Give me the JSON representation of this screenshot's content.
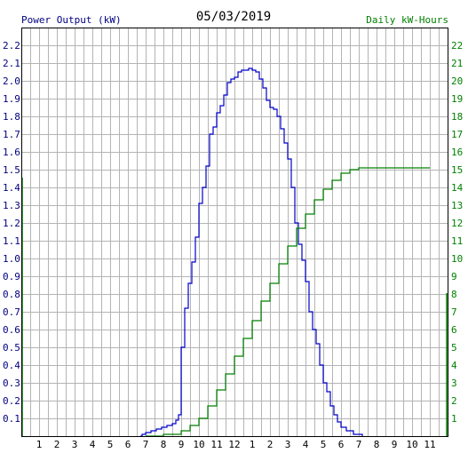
{
  "chart_data": {
    "type": "line",
    "title": "05/03/2019",
    "left_axis_label": "Power Output (kW)",
    "right_axis_label": "Daily kW-Hours",
    "x_ticks": [
      "1",
      "2",
      "3",
      "4",
      "5",
      "6",
      "7",
      "8",
      "9",
      "10",
      "11",
      "12",
      "1",
      "2",
      "3",
      "4",
      "5",
      "6",
      "7",
      "8",
      "9",
      "10",
      "11"
    ],
    "left_ylim": [
      0,
      2.3
    ],
    "left_ticks": [
      "0.1",
      "0.2",
      "0.3",
      "0.4",
      "0.5",
      "0.6",
      "0.7",
      "0.8",
      "0.9",
      "1.0",
      "1.1",
      "1.2",
      "1.3",
      "1.4",
      "1.5",
      "1.6",
      "1.7",
      "1.8",
      "1.9",
      "2.0",
      "2.1",
      "2.2"
    ],
    "right_ylim": [
      0,
      23
    ],
    "right_ticks": [
      "1",
      "2",
      "3",
      "4",
      "5",
      "6",
      "7",
      "8",
      "9",
      "10",
      "11",
      "12",
      "13",
      "14",
      "15",
      "16",
      "17",
      "18",
      "19",
      "20",
      "21",
      "22"
    ],
    "grid": true,
    "colors": {
      "power": "#0000cc",
      "energy": "#008000",
      "grid": "#b4b4b4",
      "left_text": "#000080",
      "right_text": "#008000",
      "title_text": "#000000"
    },
    "series": [
      {
        "axis": "left",
        "points": [
          [
            6.7,
            0.0
          ],
          [
            6.8,
            0.01
          ],
          [
            7.0,
            0.02
          ],
          [
            7.3,
            0.03
          ],
          [
            7.6,
            0.04
          ],
          [
            7.9,
            0.05
          ],
          [
            8.2,
            0.06
          ],
          [
            8.5,
            0.07
          ],
          [
            8.7,
            0.09
          ],
          [
            8.85,
            0.12
          ],
          [
            9.0,
            0.5
          ],
          [
            9.2,
            0.72
          ],
          [
            9.4,
            0.86
          ],
          [
            9.6,
            0.98
          ],
          [
            9.8,
            1.12
          ],
          [
            10.0,
            1.31
          ],
          [
            10.2,
            1.4
          ],
          [
            10.4,
            1.52
          ],
          [
            10.6,
            1.7
          ],
          [
            10.8,
            1.74
          ],
          [
            11.0,
            1.82
          ],
          [
            11.2,
            1.86
          ],
          [
            11.4,
            1.92
          ],
          [
            11.6,
            1.99
          ],
          [
            11.8,
            2.01
          ],
          [
            12.0,
            2.02
          ],
          [
            12.2,
            2.05
          ],
          [
            12.4,
            2.06
          ],
          [
            12.6,
            2.06
          ],
          [
            12.8,
            2.07
          ],
          [
            13.0,
            2.06
          ],
          [
            13.2,
            2.05
          ],
          [
            13.4,
            2.01
          ],
          [
            13.6,
            1.96
          ],
          [
            13.8,
            1.89
          ],
          [
            14.0,
            1.85
          ],
          [
            14.2,
            1.84
          ],
          [
            14.4,
            1.8
          ],
          [
            14.6,
            1.73
          ],
          [
            14.8,
            1.65
          ],
          [
            15.0,
            1.56
          ],
          [
            15.2,
            1.4
          ],
          [
            15.4,
            1.2
          ],
          [
            15.6,
            1.08
          ],
          [
            15.8,
            0.99
          ],
          [
            16.0,
            0.87
          ],
          [
            16.2,
            0.7
          ],
          [
            16.4,
            0.6
          ],
          [
            16.6,
            0.52
          ],
          [
            16.8,
            0.4
          ],
          [
            17.0,
            0.3
          ],
          [
            17.2,
            0.25
          ],
          [
            17.4,
            0.17
          ],
          [
            17.6,
            0.12
          ],
          [
            17.8,
            0.08
          ],
          [
            18.0,
            0.05
          ],
          [
            18.3,
            0.03
          ],
          [
            18.7,
            0.01
          ],
          [
            19.2,
            0.0
          ]
        ]
      },
      {
        "axis": "right",
        "points": [
          [
            7.0,
            0.0
          ],
          [
            8.0,
            0.1
          ],
          [
            9.0,
            0.3
          ],
          [
            9.5,
            0.6
          ],
          [
            10.0,
            1.0
          ],
          [
            10.5,
            1.7
          ],
          [
            11.0,
            2.6
          ],
          [
            11.5,
            3.5
          ],
          [
            12.0,
            4.5
          ],
          [
            12.5,
            5.5
          ],
          [
            13.0,
            6.5
          ],
          [
            13.5,
            7.6
          ],
          [
            14.0,
            8.6
          ],
          [
            14.5,
            9.7
          ],
          [
            15.0,
            10.7
          ],
          [
            15.5,
            11.7
          ],
          [
            16.0,
            12.5
          ],
          [
            16.5,
            13.3
          ],
          [
            17.0,
            13.9
          ],
          [
            17.5,
            14.4
          ],
          [
            18.0,
            14.8
          ],
          [
            18.5,
            15.0
          ],
          [
            19.0,
            15.1
          ],
          [
            20.0,
            15.1
          ],
          [
            23.0,
            15.1
          ]
        ]
      }
    ]
  }
}
